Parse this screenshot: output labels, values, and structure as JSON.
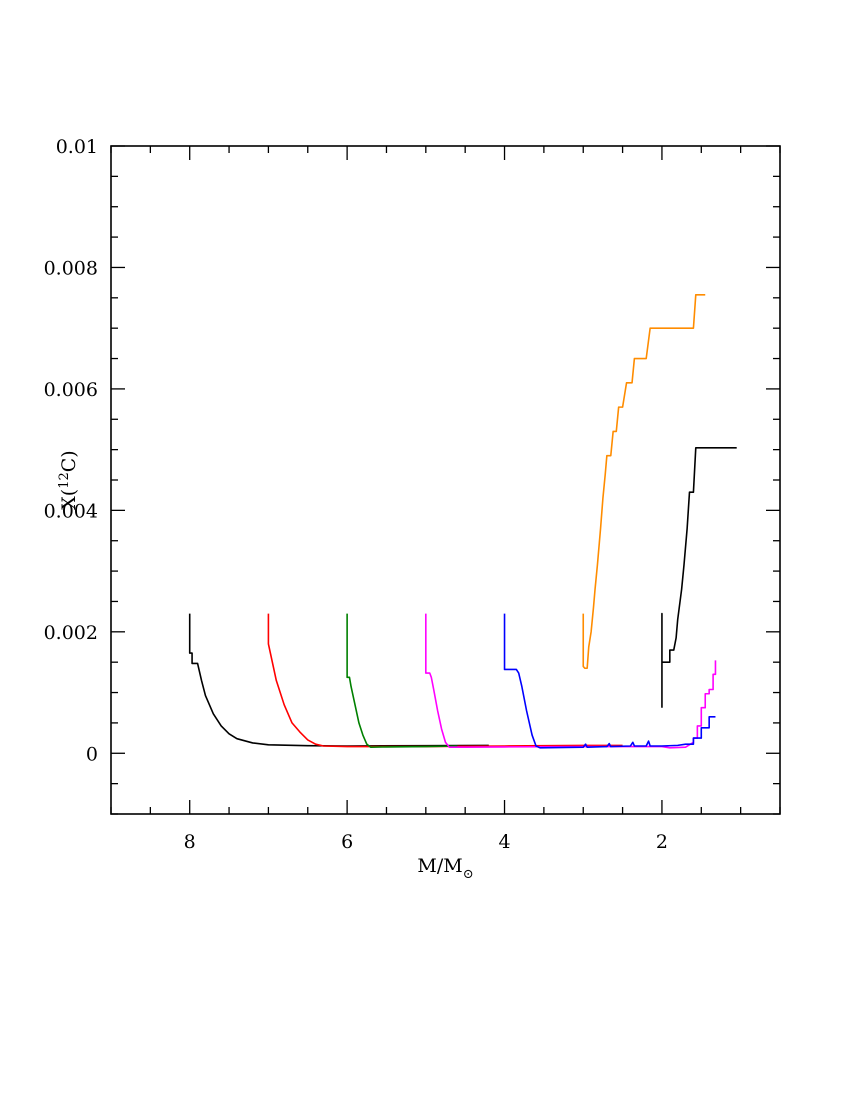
{
  "chart_data": {
    "type": "line",
    "title": "",
    "xlabel": {
      "main": "M/M",
      "sub": "⊙"
    },
    "ylabel": {
      "prefix": "X(",
      "sup": "12",
      "suffix": "C)"
    },
    "xlim": [
      9,
      0.5
    ],
    "ylim": [
      -0.001,
      0.01
    ],
    "x_ticks_major": [
      8,
      6,
      4,
      2
    ],
    "x_tick_labels": [
      "8",
      "6",
      "4",
      "2"
    ],
    "y_ticks_major": [
      0,
      0.002,
      0.004,
      0.006,
      0.008,
      0.01
    ],
    "y_tick_labels": [
      "0",
      "0.002",
      "0.004",
      "0.006",
      "0.008",
      "0.01"
    ],
    "x_minor_step": 0.5,
    "y_minor_step": 0.0005,
    "grid": false,
    "legend": "none",
    "series": [
      {
        "color": "#000000",
        "points": [
          [
            8.0,
            0.0023
          ],
          [
            8.0,
            0.00165
          ],
          [
            7.97,
            0.00165
          ],
          [
            7.97,
            0.00148
          ],
          [
            7.9,
            0.00148
          ],
          [
            7.85,
            0.0012
          ],
          [
            7.8,
            0.00095
          ],
          [
            7.7,
            0.00065
          ],
          [
            7.6,
            0.00045
          ],
          [
            7.5,
            0.00032
          ],
          [
            7.4,
            0.00024
          ],
          [
            7.2,
            0.00017
          ],
          [
            7.0,
            0.00014
          ],
          [
            6.5,
            0.000125
          ],
          [
            6.0,
            0.00012
          ],
          [
            5.0,
            0.000125
          ],
          [
            4.2,
            0.00013
          ]
        ]
      },
      {
        "color": "#ff0000",
        "points": [
          [
            7.0,
            0.0023
          ],
          [
            7.0,
            0.0018
          ],
          [
            6.95,
            0.0015
          ],
          [
            6.9,
            0.0012
          ],
          [
            6.8,
            0.0008
          ],
          [
            6.7,
            0.0005
          ],
          [
            6.6,
            0.00035
          ],
          [
            6.5,
            0.00022
          ],
          [
            6.4,
            0.00015
          ],
          [
            6.3,
            0.00012
          ],
          [
            6.0,
            0.00011
          ],
          [
            5.0,
            0.00011
          ],
          [
            4.0,
            0.00012
          ],
          [
            3.0,
            0.00013
          ],
          [
            2.5,
            0.00013
          ]
        ]
      },
      {
        "color": "#008000",
        "points": [
          [
            6.0,
            0.0023
          ],
          [
            6.0,
            0.00125
          ],
          [
            5.97,
            0.00125
          ],
          [
            5.95,
            0.0011
          ],
          [
            5.9,
            0.0008
          ],
          [
            5.85,
            0.0005
          ],
          [
            5.8,
            0.0003
          ],
          [
            5.75,
            0.00015
          ],
          [
            5.7,
            0.0001
          ],
          [
            5.5,
            0.000105
          ],
          [
            5.0,
            0.00011
          ],
          [
            4.6,
            0.00012
          ]
        ]
      },
      {
        "color": "#ff00ff",
        "points": [
          [
            5.0,
            0.0023
          ],
          [
            5.0,
            0.00132
          ],
          [
            4.95,
            0.00132
          ],
          [
            4.93,
            0.00125
          ],
          [
            4.9,
            0.00105
          ],
          [
            4.85,
            0.0007
          ],
          [
            4.8,
            0.0004
          ],
          [
            4.75,
            0.00018
          ],
          [
            4.7,
            0.0001
          ],
          [
            4.5,
            0.0001
          ],
          [
            4.0,
            0.000105
          ],
          [
            3.0,
            0.00011
          ],
          [
            2.0,
            0.00011
          ],
          [
            1.9,
            9e-05
          ],
          [
            1.7,
            0.0001
          ],
          [
            1.6,
            0.00018
          ],
          [
            1.6,
            0.00025
          ],
          [
            1.55,
            0.00025
          ],
          [
            1.55,
            0.00045
          ],
          [
            1.5,
            0.00045
          ],
          [
            1.5,
            0.00075
          ],
          [
            1.45,
            0.00075
          ],
          [
            1.45,
            0.00098
          ],
          [
            1.4,
            0.00098
          ],
          [
            1.4,
            0.00105
          ],
          [
            1.35,
            0.00105
          ],
          [
            1.35,
            0.0013
          ],
          [
            1.32,
            0.0013
          ],
          [
            1.32,
            0.00153
          ]
        ]
      },
      {
        "color": "#0000ff",
        "points": [
          [
            4.0,
            0.0023
          ],
          [
            4.0,
            0.00138
          ],
          [
            3.85,
            0.00138
          ],
          [
            3.82,
            0.00132
          ],
          [
            3.78,
            0.0011
          ],
          [
            3.72,
            0.0007
          ],
          [
            3.65,
            0.0003
          ],
          [
            3.6,
            0.00012
          ],
          [
            3.55,
            9e-05
          ],
          [
            3.0,
            0.0001
          ],
          [
            2.97,
            0.00015
          ],
          [
            2.95,
            0.0001
          ],
          [
            2.7,
            0.00011
          ],
          [
            2.67,
            0.00016
          ],
          [
            2.65,
            0.00011
          ],
          [
            2.4,
            0.00012
          ],
          [
            2.37,
            0.00018
          ],
          [
            2.35,
            0.00012
          ],
          [
            2.2,
            0.00012
          ],
          [
            2.17,
            0.0002
          ],
          [
            2.15,
            0.00012
          ],
          [
            2.0,
            0.00012
          ],
          [
            1.8,
            0.00013
          ],
          [
            1.7,
            0.00015
          ],
          [
            1.6,
            0.00015
          ],
          [
            1.6,
            0.00025
          ],
          [
            1.5,
            0.00025
          ],
          [
            1.5,
            0.00042
          ],
          [
            1.4,
            0.00042
          ],
          [
            1.4,
            0.0006
          ],
          [
            1.32,
            0.0006
          ]
        ]
      },
      {
        "color": "#ff8c00",
        "points": [
          [
            3.0,
            0.0023
          ],
          [
            3.0,
            0.00143
          ],
          [
            2.98,
            0.0014
          ],
          [
            2.95,
            0.0014
          ],
          [
            2.93,
            0.00175
          ],
          [
            2.9,
            0.002
          ],
          [
            2.87,
            0.0024
          ],
          [
            2.85,
            0.0027
          ],
          [
            2.82,
            0.0031
          ],
          [
            2.8,
            0.0034
          ],
          [
            2.78,
            0.0037
          ],
          [
            2.75,
            0.0042
          ],
          [
            2.72,
            0.0046
          ],
          [
            2.7,
            0.0049
          ],
          [
            2.65,
            0.0049
          ],
          [
            2.62,
            0.0053
          ],
          [
            2.58,
            0.0053
          ],
          [
            2.55,
            0.0057
          ],
          [
            2.5,
            0.0057
          ],
          [
            2.45,
            0.0061
          ],
          [
            2.38,
            0.0061
          ],
          [
            2.35,
            0.0065
          ],
          [
            2.2,
            0.0065
          ],
          [
            2.15,
            0.007
          ],
          [
            1.6,
            0.007
          ],
          [
            1.57,
            0.00755
          ],
          [
            1.45,
            0.00755
          ]
        ]
      },
      {
        "color": "#000000",
        "points": [
          [
            2.0,
            0.00075
          ],
          [
            2.0,
            0.0023
          ],
          [
            2.0,
            0.0015
          ],
          [
            1.9,
            0.0015
          ],
          [
            1.9,
            0.0017
          ],
          [
            1.85,
            0.0017
          ],
          [
            1.82,
            0.0019
          ],
          [
            1.8,
            0.0022
          ],
          [
            1.75,
            0.0027
          ],
          [
            1.72,
            0.0031
          ],
          [
            1.68,
            0.0037
          ],
          [
            1.65,
            0.0043
          ],
          [
            1.6,
            0.0043
          ],
          [
            1.57,
            0.00503
          ],
          [
            1.05,
            0.00503
          ]
        ]
      }
    ]
  }
}
